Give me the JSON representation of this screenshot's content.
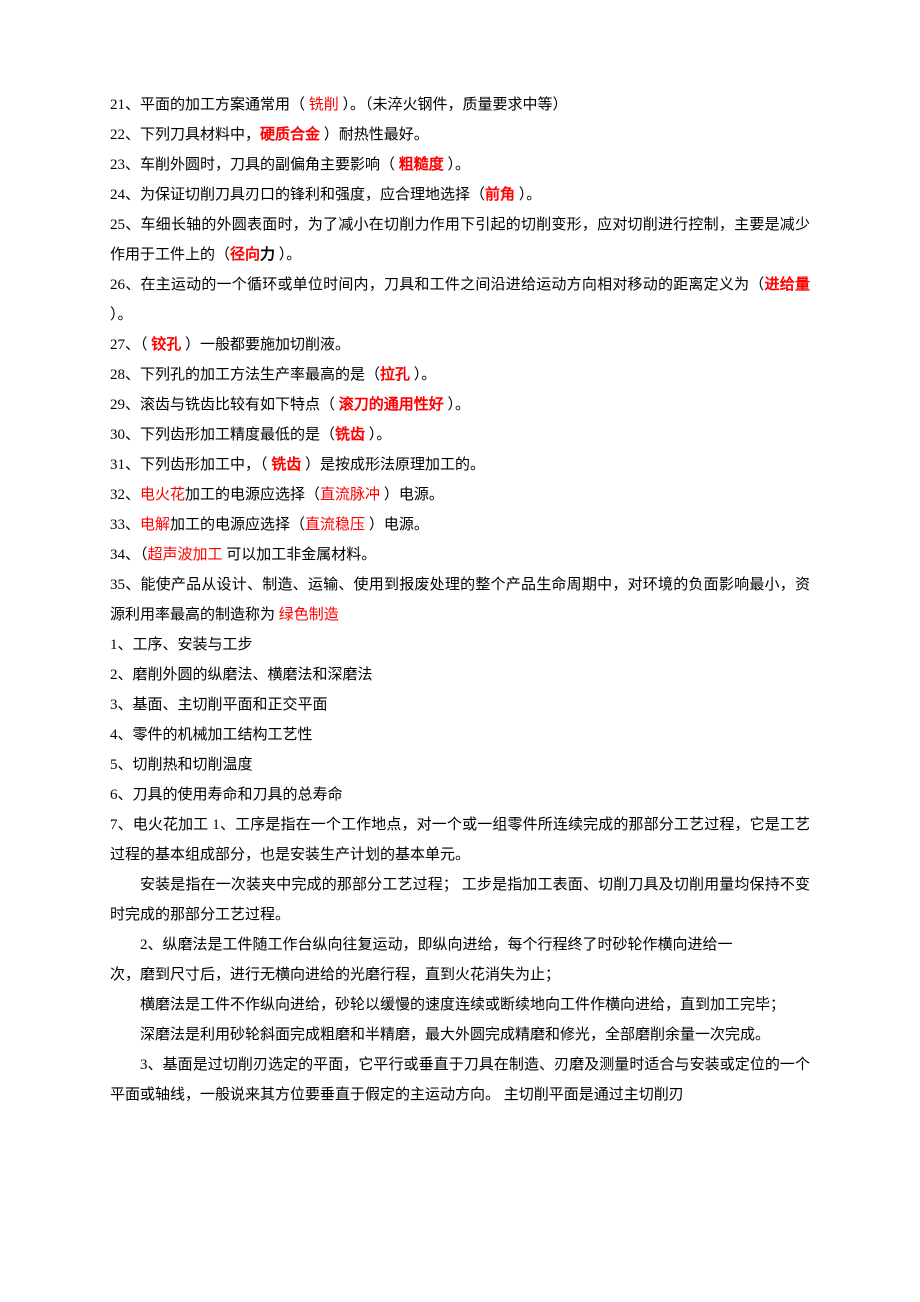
{
  "colors": {
    "text": "#000000",
    "highlight": "#ff0000",
    "background": "#ffffff"
  },
  "typography": {
    "font_family": "SimSun",
    "font_size_pt": 11,
    "line_height": 2.0
  },
  "q21": {
    "pre": "21、平面的加工方案通常用（ ",
    "ans": "铣削",
    "post": " ）。（未淬火钢件，质量要求中等）"
  },
  "q22": {
    "pre": "22、下列刀具材料中，",
    "ans": "硬质合金",
    "post": "  ）耐热性最好。"
  },
  "q23": {
    "pre": "23、车削外圆时，刀具的副偏角主要影响（  ",
    "ans": "粗糙度",
    "post": "  ）。"
  },
  "q24": {
    "pre": "24、为保证切削刀具刃口的锋利和强度，应合理地选择（",
    "ans": "前角",
    "post": "  ）。"
  },
  "q25": {
    "pre1": "25、车细长轴的外圆表面时，为了减小在切削力作用下引起的切削变形，应对切削进行控制，主要是减少作用于工件上的（",
    "ans1": "径向",
    "ans2": "力",
    "post": "  ）。"
  },
  "q26": {
    "pre": "26、在主运动的一个循环或单位时间内，刀具和工件之间沿进给运动方向相对移动的距离定义为（",
    "ans": "进给量",
    "post": "  ）。"
  },
  "q27": {
    "pre": "27、（  ",
    "ans": "铰孔",
    "post": "     ）一般都要施加切削液。"
  },
  "q28": {
    "pre": "28、下列孔的加工方法生产率最高的是（",
    "ans": "拉孔",
    "post": "  ）。"
  },
  "q29": {
    "pre": "29、滚齿与铣齿比较有如下特点（  ",
    "ans": "滚刀的通用性好",
    "post": "  ）。"
  },
  "q30": {
    "pre": "30、下列齿形加工精度最低的是（",
    "ans": "铣齿",
    "post": "  ）。"
  },
  "q31": {
    "pre": "31、下列齿形加工中，（  ",
    "ans": "铣齿",
    "post": "  ）是按成形法原理加工的。"
  },
  "q32": {
    "pre1": "32、",
    "ans1": "电火花",
    "mid": "加工的电源应选择（",
    "ans2": "直流脉冲",
    "post": "  ）电源。"
  },
  "q33": {
    "pre1": "33、",
    "ans1": "电解",
    "mid": "加工的电源应选择（",
    "ans2": "直流稳压",
    "post": "  ）电源。"
  },
  "q34": {
    "pre": "34、（",
    "ans": "超声波加工",
    "post": "  可以加工非金属材料。"
  },
  "q35": {
    "pre": "35、能使产品从设计、制造、运输、使用到报废处理的整个产品生命周期中，对环境的负面影响最小，资源利用率最高的制造称为 ",
    "ans": "绿色制造"
  },
  "n1": "1、工序、安装与工步",
  "n2": "2、磨削外圆的纵磨法、横磨法和深磨法",
  "n3": "3、基面、主切削平面和正交平面",
  "n4": "4、零件的机械加工结构工艺性",
  "n5": "5、切削热和切削温度",
  "n6": "6、刀具的使用寿命和刀具的总寿命",
  "n7": "7、电火花加工  1、工序是指在一个工作地点，对一个或一组零件所连续完成的那部分工艺过程，它是工艺过程的基本组成部分，也是安装生产计划的基本单元。",
  "p1": "安装是指在一次装夹中完成的那部分工艺过程；   工步是指加工表面、切削刀具及切削用量均保持不变时完成的那部分工艺过程。",
  "p2a": "2、纵磨法是工件随工作台纵向往复运动，即纵向进给，每个行程终了时砂轮作横向进给一",
  "p2b": "次，磨到尺寸后，进行无横向进给的光磨行程，直到火花消失为止；",
  "p3": "横磨法是工件不作纵向进给，砂轮以缓慢的速度连续或断续地向工件作横向进给，直到加工完毕；",
  "p4": "深磨法是利用砂轮斜面完成粗磨和半精磨，最大外圆完成精磨和修光，全部磨削余量一次完成。",
  "p5": "3、基面是过切削刃选定的平面，它平行或垂直于刀具在制造、刃磨及测量时适合与安装或定位的一个平面或轴线，一般说来其方位要垂直于假定的主运动方向。   主切削平面是通过主切削刃"
}
